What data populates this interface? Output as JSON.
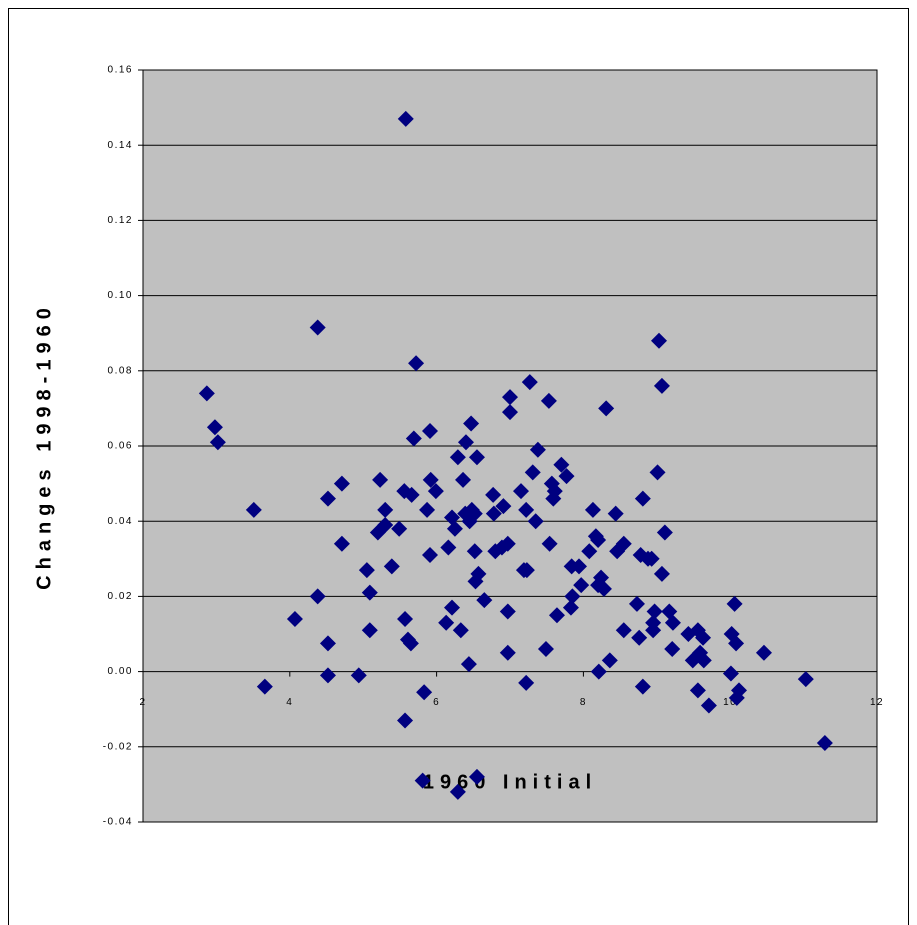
{
  "chart_data": {
    "type": "scatter",
    "xlabel": "1960 Initial",
    "ylabel": "Changes 1998-1960",
    "color": "#000080",
    "grid": true,
    "xlim": [
      2,
      12
    ],
    "xticks": [
      2,
      4,
      6,
      8,
      10,
      12
    ],
    "ylim": [
      -0.04,
      0.16
    ],
    "yticks": [
      -0.04,
      -0.02,
      {
        "value": 0,
        "label": "0.00"
      },
      0.02,
      0.04,
      0.06,
      0.08,
      {
        "value": 0.1,
        "label": "0.10"
      },
      0.12,
      0.14,
      0.16
    ],
    "x": [
      5.58,
      4.38,
      5.72,
      2.87,
      2.98,
      3.02,
      9.03,
      9.07,
      7.27,
      7.0,
      7.0,
      8.31,
      6.47,
      7.53,
      7.38,
      5.69,
      5.91,
      6.4,
      6.55,
      6.29,
      6.36,
      7.31,
      7.7,
      7.77,
      9.01,
      7.61,
      7.57,
      7.59,
      7.15,
      4.71,
      5.23,
      5.56,
      5.66,
      5.92,
      5.99,
      4.52,
      8.81,
      6.77,
      5.3,
      3.51,
      5.87,
      6.48,
      6.91,
      6.78,
      7.22,
      7.35,
      8.13,
      8.44,
      9.11,
      6.21,
      6.45,
      6.39,
      5.3,
      5.2,
      5.49,
      6.25,
      6.52,
      4.71,
      8.17,
      8.2,
      8.55,
      8.46,
      8.78,
      8.88,
      8.93,
      8.08,
      6.97,
      6.89,
      6.52,
      6.8,
      7.54,
      6.16,
      5.91,
      5.39,
      5.05,
      7.19,
      7.23,
      6.57,
      6.53,
      7.84,
      7.94,
      8.24,
      9.07,
      7.97,
      8.2,
      8.28,
      5.09,
      4.38,
      6.65,
      7.85,
      7.83,
      7.64,
      8.73,
      10.06,
      8.97,
      6.21,
      6.97,
      9.17,
      4.07,
      5.57,
      8.95,
      6.13,
      9.22,
      8.95,
      6.33,
      5.09,
      8.55,
      9.43,
      10.02,
      9.56,
      8.76,
      9.63,
      4.52,
      5.61,
      5.65,
      10.08,
      7.49,
      9.21,
      10.46,
      6.97,
      9.59,
      9.49,
      9.64,
      6.44,
      8.36,
      8.21,
      10.01,
      4.52,
      4.94,
      11.03,
      7.22,
      3.66,
      8.81,
      9.56,
      10.12,
      5.83,
      10.09,
      9.71,
      5.57,
      11.29,
      5.81,
      6.55,
      6.29
    ],
    "values": [
      0.147,
      0.0915,
      0.082,
      0.074,
      0.065,
      0.061,
      0.088,
      0.076,
      0.077,
      0.073,
      0.069,
      0.07,
      0.066,
      0.072,
      0.059,
      0.062,
      0.064,
      0.061,
      0.057,
      0.057,
      0.051,
      0.053,
      0.055,
      0.052,
      0.053,
      0.048,
      0.05,
      0.046,
      0.048,
      0.05,
      0.051,
      0.048,
      0.047,
      0.051,
      0.048,
      0.046,
      0.046,
      0.047,
      0.043,
      0.043,
      0.043,
      0.043,
      0.044,
      0.042,
      0.043,
      0.04,
      0.043,
      0.042,
      0.037,
      0.041,
      0.04,
      0.042,
      0.039,
      0.037,
      0.038,
      0.038,
      0.042,
      0.034,
      0.036,
      0.035,
      0.034,
      0.032,
      0.031,
      0.03,
      0.03,
      0.032,
      0.034,
      0.033,
      0.032,
      0.032,
      0.034,
      0.033,
      0.031,
      0.028,
      0.027,
      0.027,
      0.027,
      0.026,
      0.024,
      0.028,
      0.028,
      0.025,
      0.026,
      0.023,
      0.023,
      0.022,
      0.021,
      0.02,
      0.019,
      0.02,
      0.017,
      0.015,
      0.018,
      0.018,
      0.016,
      0.017,
      0.016,
      0.016,
      0.014,
      0.014,
      0.013,
      0.013,
      0.013,
      0.011,
      0.011,
      0.011,
      0.011,
      0.01,
      0.01,
      0.011,
      0.009,
      0.009,
      0.0075,
      0.0085,
      0.0075,
      0.0075,
      0.006,
      0.006,
      0.005,
      0.005,
      0.005,
      0.003,
      0.003,
      0.002,
      0.003,
      0.0,
      -0.0005,
      -0.001,
      -0.001,
      -0.002,
      -0.003,
      -0.004,
      -0.004,
      -0.005,
      -0.005,
      -0.0055,
      -0.007,
      -0.009,
      -0.013,
      -0.019,
      -0.029,
      -0.028,
      -0.032
    ]
  }
}
